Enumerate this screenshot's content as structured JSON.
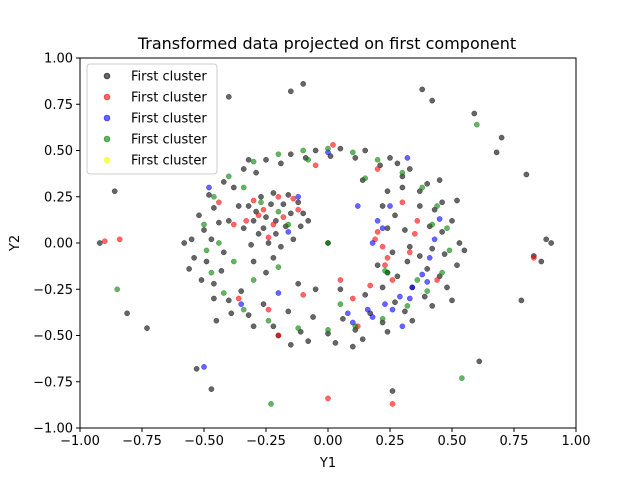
{
  "chart_data": {
    "type": "scatter",
    "title": "Transformed data projected on first component",
    "xlabel": "Y1",
    "ylabel": "Y2",
    "xlim": [
      -1.0,
      1.0
    ],
    "ylim": [
      -1.0,
      1.0
    ],
    "xticks": [
      "−1.00",
      "−0.75",
      "−0.50",
      "−0.25",
      "0.00",
      "0.25",
      "0.50",
      "0.75",
      "1.00"
    ],
    "yticks": [
      "−1.00",
      "−0.75",
      "−0.50",
      "−0.25",
      "0.00",
      "0.25",
      "0.50",
      "0.75",
      "1.00"
    ],
    "xtick_values": [
      -1.0,
      -0.75,
      -0.5,
      -0.25,
      0.0,
      0.25,
      0.5,
      0.75,
      1.0
    ],
    "ytick_values": [
      -1.0,
      -0.75,
      -0.5,
      -0.25,
      0.0,
      0.25,
      0.5,
      0.75,
      1.0
    ],
    "grid": false,
    "legend_position": "top-left",
    "series": [
      {
        "name": "First cluster",
        "color": "#000000",
        "points": [
          [
            -0.4,
            0.79
          ],
          [
            -0.15,
            0.82
          ],
          [
            -0.1,
            0.86
          ],
          [
            0.38,
            0.83
          ],
          [
            0.42,
            0.77
          ],
          [
            0.59,
            0.7
          ],
          [
            0.7,
            0.57
          ],
          [
            0.68,
            0.49
          ],
          [
            0.8,
            0.37
          ],
          [
            -0.86,
            0.28
          ],
          [
            -0.92,
            0.0
          ],
          [
            0.83,
            -0.07
          ],
          [
            0.88,
            0.02
          ],
          [
            0.9,
            0.0
          ],
          [
            0.86,
            -0.1
          ],
          [
            0.78,
            -0.31
          ],
          [
            0.61,
            -0.64
          ],
          [
            0.26,
            -0.8
          ],
          [
            -0.53,
            -0.68
          ],
          [
            -0.47,
            -0.79
          ],
          [
            -0.81,
            -0.38
          ],
          [
            -0.73,
            -0.46
          ],
          [
            -0.55,
            0.02
          ],
          [
            -0.52,
            0.15
          ],
          [
            -0.48,
            0.26
          ],
          [
            -0.42,
            0.33
          ],
          [
            -0.34,
            0.4
          ],
          [
            -0.25,
            0.45
          ],
          [
            -0.15,
            0.48
          ],
          [
            -0.05,
            0.5
          ],
          [
            0.05,
            0.51
          ],
          [
            0.15,
            0.5
          ],
          [
            0.25,
            0.46
          ],
          [
            0.33,
            0.4
          ],
          [
            0.4,
            0.32
          ],
          [
            0.46,
            0.22
          ],
          [
            0.5,
            0.12
          ],
          [
            0.53,
            0.0
          ],
          [
            0.52,
            -0.12
          ],
          [
            0.48,
            -0.24
          ],
          [
            0.42,
            -0.34
          ],
          [
            0.34,
            -0.42
          ],
          [
            0.24,
            -0.48
          ],
          [
            0.14,
            -0.52
          ],
          [
            0.03,
            -0.54
          ],
          [
            -0.08,
            -0.53
          ],
          [
            -0.2,
            -0.5
          ],
          [
            -0.3,
            -0.45
          ],
          [
            -0.39,
            -0.38
          ],
          [
            -0.46,
            -0.3
          ],
          [
            -0.51,
            -0.2
          ],
          [
            -0.54,
            -0.08
          ],
          [
            -0.5,
            0.07
          ],
          [
            -0.46,
            0.19
          ],
          [
            -0.38,
            0.3
          ],
          [
            -0.29,
            0.38
          ],
          [
            -0.19,
            0.43
          ],
          [
            -0.09,
            0.46
          ],
          [
            0.01,
            0.47
          ],
          [
            0.11,
            0.46
          ],
          [
            0.21,
            0.42
          ],
          [
            0.3,
            0.36
          ],
          [
            0.37,
            0.28
          ],
          [
            0.43,
            0.18
          ],
          [
            0.46,
            0.06
          ],
          [
            0.47,
            -0.06
          ],
          [
            0.45,
            -0.18
          ],
          [
            0.39,
            -0.29
          ],
          [
            0.31,
            -0.37
          ],
          [
            0.22,
            -0.43
          ],
          [
            0.11,
            -0.47
          ],
          [
            0.0,
            -0.49
          ],
          [
            -0.11,
            -0.48
          ],
          [
            -0.22,
            -0.45
          ],
          [
            -0.32,
            -0.39
          ],
          [
            -0.4,
            -0.31
          ],
          [
            -0.46,
            -0.22
          ],
          [
            -0.49,
            -0.1
          ],
          [
            -0.44,
            0.11
          ],
          [
            -0.36,
            0.2
          ],
          [
            -0.43,
            -0.15
          ],
          [
            -0.35,
            -0.26
          ],
          [
            -0.26,
            -0.33
          ],
          [
            -0.16,
            -0.37
          ],
          [
            -0.06,
            -0.4
          ],
          [
            0.06,
            -0.41
          ],
          [
            0.17,
            -0.38
          ],
          [
            0.27,
            -0.32
          ],
          [
            0.34,
            -0.24
          ],
          [
            0.4,
            -0.14
          ],
          [
            0.42,
            -0.03
          ],
          [
            0.41,
            0.09
          ],
          [
            0.37,
            0.2
          ],
          [
            0.3,
            0.3
          ],
          [
            -0.32,
            0.2
          ],
          [
            -0.3,
            0.12
          ],
          [
            -0.28,
            0.05
          ],
          [
            -0.24,
            0.0
          ],
          [
            -0.19,
            -0.02
          ],
          [
            -0.14,
            0.02
          ],
          [
            -0.11,
            0.09
          ],
          [
            -0.1,
            0.16
          ],
          [
            -0.12,
            0.22
          ],
          [
            -0.16,
            0.26
          ],
          [
            -0.22,
            0.27
          ],
          [
            -0.27,
            0.25
          ],
          [
            -0.29,
            0.17
          ],
          [
            -0.26,
            0.08
          ],
          [
            -0.21,
            0.05
          ],
          [
            -0.17,
            0.09
          ],
          [
            -0.15,
            0.16
          ],
          [
            -0.18,
            0.21
          ],
          [
            -0.23,
            0.21
          ],
          [
            -0.25,
            0.14
          ],
          [
            -0.21,
            0.12
          ],
          [
            -0.34,
            0.08
          ],
          [
            -0.31,
            -0.01
          ],
          [
            -0.08,
            0.12
          ],
          [
            -0.3,
            -0.1
          ],
          [
            -0.25,
            -0.16
          ],
          [
            -0.12,
            -0.22
          ],
          [
            -0.05,
            -0.25
          ],
          [
            0.05,
            -0.25
          ],
          [
            -0.22,
            -0.08
          ],
          [
            0.22,
            0.2
          ],
          [
            0.27,
            0.15
          ],
          [
            0.31,
            0.07
          ],
          [
            0.33,
            -0.02
          ],
          [
            0.32,
            -0.1
          ],
          [
            0.28,
            -0.18
          ],
          [
            0.22,
            -0.24
          ],
          [
            0.15,
            -0.28
          ],
          [
            0.24,
            0.08
          ],
          [
            0.26,
            -0.05
          ],
          [
            0.2,
            -0.12
          ],
          [
            0.24,
            0.28
          ],
          [
            0.37,
            -0.07
          ],
          [
            0.14,
            0.34
          ],
          [
            -0.4,
            0.12
          ],
          [
            -0.47,
            0.02
          ],
          [
            -0.42,
            -0.05
          ],
          [
            0.52,
            0.23
          ],
          [
            0.55,
            -0.04
          ],
          [
            0.5,
            -0.31
          ],
          [
            -0.58,
            0.0
          ],
          [
            -0.56,
            -0.14
          ],
          [
            0.1,
            -0.56
          ],
          [
            -0.15,
            -0.55
          ],
          [
            0.0,
            0.0
          ],
          [
            0.24,
            -0.16
          ],
          [
            0.45,
            0.34
          ],
          [
            -0.32,
            0.45
          ],
          [
            0.28,
            0.43
          ],
          [
            -0.45,
            -0.42
          ]
        ]
      },
      {
        "name": "First cluster",
        "color": "#ff0000",
        "points": [
          [
            -0.9,
            0.01
          ],
          [
            -0.84,
            0.02
          ],
          [
            0.83,
            -0.08
          ],
          [
            0.0,
            -0.84
          ],
          [
            0.26,
            -0.87
          ],
          [
            -0.3,
            0.23
          ],
          [
            -0.26,
            0.18
          ],
          [
            -0.22,
            0.1
          ],
          [
            -0.18,
            0.14
          ],
          [
            -0.14,
            0.24
          ],
          [
            -0.2,
            0.25
          ],
          [
            -0.28,
            0.15
          ],
          [
            -0.12,
            0.18
          ],
          [
            -0.24,
            0.03
          ],
          [
            -0.33,
            0.12
          ],
          [
            0.2,
            0.06
          ],
          [
            0.22,
            -0.02
          ],
          [
            0.24,
            -0.08
          ],
          [
            0.19,
            0.02
          ],
          [
            0.23,
            -0.12
          ],
          [
            0.26,
            -0.2
          ],
          [
            0.17,
            -0.23
          ],
          [
            0.1,
            -0.3
          ],
          [
            0.33,
            -0.05
          ],
          [
            0.35,
            0.05
          ],
          [
            0.36,
            0.12
          ],
          [
            0.3,
            0.22
          ],
          [
            -0.38,
            0.1
          ],
          [
            -0.44,
            0.22
          ],
          [
            -0.36,
            -0.3
          ],
          [
            -0.2,
            -0.5
          ],
          [
            0.02,
            0.53
          ],
          [
            -0.05,
            0.42
          ],
          [
            0.2,
            0.4
          ],
          [
            0.44,
            -0.2
          ],
          [
            -0.24,
            -0.36
          ],
          [
            0.12,
            -0.45
          ],
          [
            -0.1,
            -0.28
          ],
          [
            0.05,
            -0.2
          ]
        ]
      },
      {
        "name": "First cluster",
        "color": "#0000ff",
        "points": [
          [
            -0.5,
            -0.67
          ],
          [
            -0.48,
            0.3
          ],
          [
            0.45,
            0.13
          ],
          [
            0.43,
            0.02
          ],
          [
            0.41,
            -0.08
          ],
          [
            0.38,
            -0.17
          ],
          [
            0.34,
            -0.24
          ],
          [
            0.29,
            -0.29
          ],
          [
            0.23,
            -0.33
          ],
          [
            0.16,
            -0.36
          ],
          [
            0.08,
            -0.38
          ],
          [
            0.4,
            -0.21
          ],
          [
            0.33,
            -0.3
          ],
          [
            0.26,
            -0.36
          ],
          [
            0.18,
            -0.4
          ],
          [
            0.1,
            -0.43
          ],
          [
            0.22,
            0.08
          ],
          [
            0.18,
            0.0
          ],
          [
            0.2,
            0.12
          ],
          [
            -0.12,
            0.25
          ],
          [
            -0.16,
            0.06
          ],
          [
            0.0,
            0.49
          ],
          [
            -0.35,
            -0.33
          ],
          [
            0.32,
            0.46
          ],
          [
            0.25,
            0.2
          ],
          [
            0.12,
            0.2
          ],
          [
            -0.2,
            -0.27
          ],
          [
            0.3,
            -0.45
          ]
        ]
      },
      {
        "name": "First cluster",
        "color": "#008000",
        "points": [
          [
            0.6,
            0.64
          ],
          [
            -0.85,
            -0.25
          ],
          [
            -0.23,
            -0.87
          ],
          [
            0.54,
            -0.73
          ],
          [
            -0.5,
            0.1
          ],
          [
            -0.46,
            0.25
          ],
          [
            -0.4,
            0.36
          ],
          [
            -0.3,
            0.44
          ],
          [
            -0.2,
            0.48
          ],
          [
            -0.1,
            0.5
          ],
          [
            0.0,
            0.51
          ],
          [
            0.1,
            0.49
          ],
          [
            0.2,
            0.45
          ],
          [
            0.3,
            0.38
          ],
          [
            0.38,
            0.3
          ],
          [
            0.44,
            0.2
          ],
          [
            0.48,
            0.08
          ],
          [
            0.49,
            -0.04
          ],
          [
            0.46,
            -0.16
          ],
          [
            0.4,
            -0.26
          ],
          [
            0.32,
            -0.34
          ],
          [
            0.22,
            -0.41
          ],
          [
            0.11,
            -0.45
          ],
          [
            0.0,
            -0.47
          ],
          [
            -0.12,
            -0.46
          ],
          [
            -0.24,
            -0.42
          ],
          [
            -0.34,
            -0.36
          ],
          [
            -0.42,
            -0.27
          ],
          [
            -0.47,
            -0.16
          ],
          [
            -0.49,
            -0.04
          ],
          [
            -0.44,
            0.0
          ],
          [
            -0.38,
            -0.1
          ],
          [
            -0.34,
            0.3
          ],
          [
            0.42,
            0.1
          ],
          [
            0.0,
            0.0
          ],
          [
            0.24,
            -0.16
          ],
          [
            0.23,
            -0.15
          ],
          [
            -0.27,
            0.22
          ],
          [
            -0.2,
            0.17
          ],
          [
            -0.16,
            0.1
          ],
          [
            0.36,
            -0.2
          ],
          [
            -0.08,
            0.45
          ],
          [
            0.15,
            0.35
          ],
          [
            -0.3,
            -0.2
          ],
          [
            0.05,
            -0.33
          ],
          [
            -0.2,
            -0.13
          ]
        ]
      },
      {
        "name": "First cluster",
        "color": "#ffff00",
        "points": []
      }
    ]
  }
}
